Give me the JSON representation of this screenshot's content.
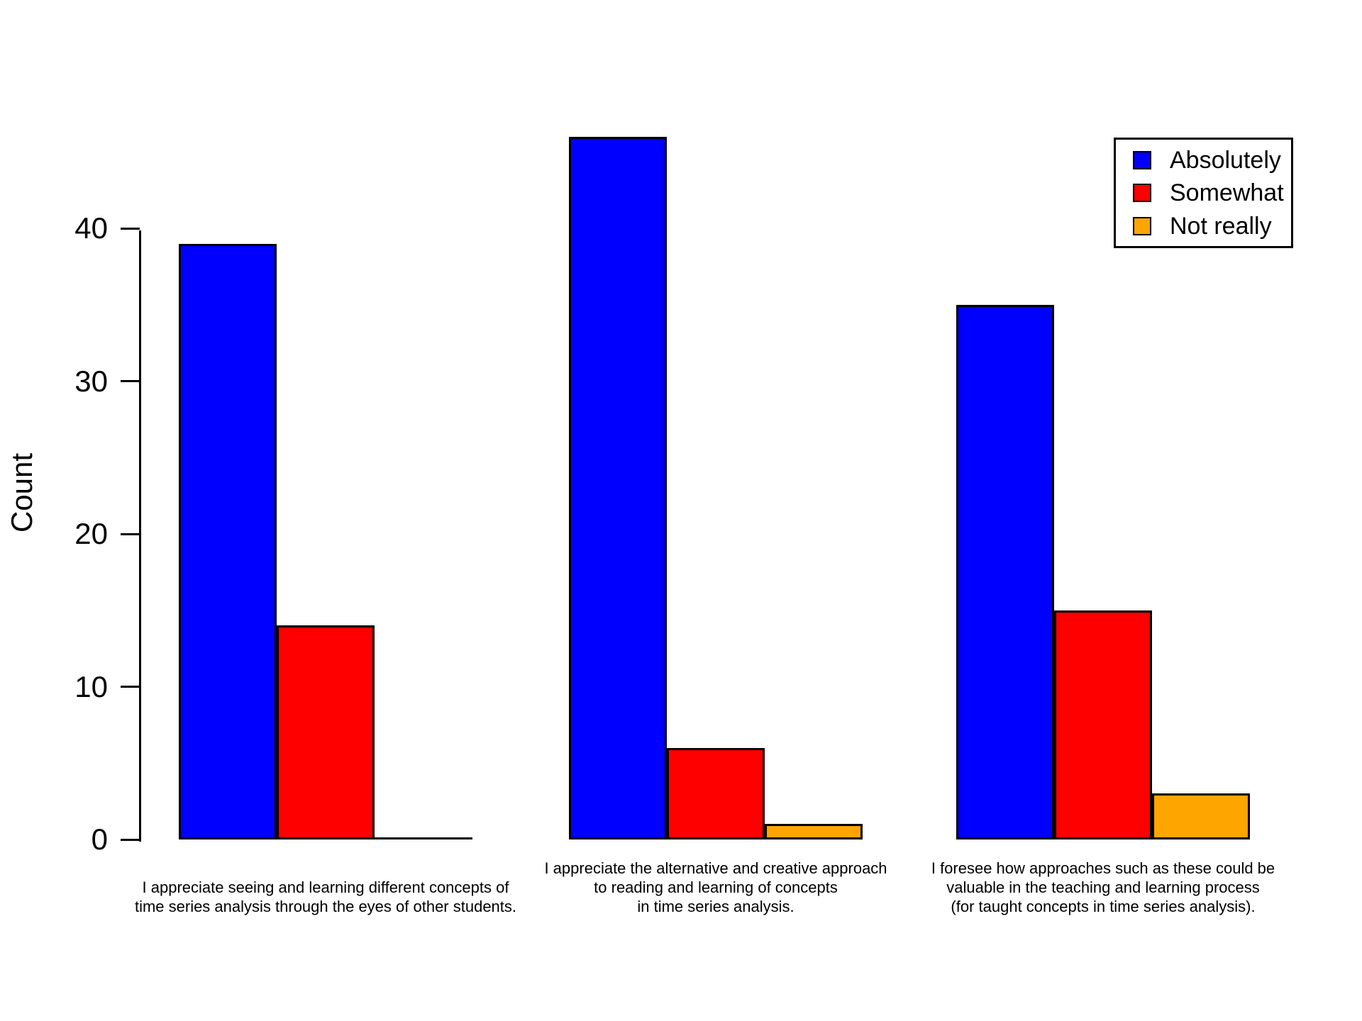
{
  "chart_data": {
    "type": "bar",
    "title": "",
    "xlabel": "",
    "ylabel": "Count",
    "ylim": [
      0,
      46
    ],
    "yticks": [
      0,
      10,
      20,
      30,
      40
    ],
    "grid": false,
    "bar_outline_color": "#000000",
    "categories": [
      "I appreciate seeing and learning different concepts of\ntime series analysis through the eyes of other students.",
      "I appreciate the alternative and creative approach\nto reading and learning of concepts\nin time series analysis.",
      "I foresee how approaches such as these could be\nvaluable in the teaching and learning process\n(for taught concepts in time series analysis)."
    ],
    "series": [
      {
        "name": "Absolutely",
        "color": "#0000FF",
        "values": [
          39,
          46,
          35
        ]
      },
      {
        "name": "Somewhat",
        "color": "#FF0000",
        "values": [
          14,
          6,
          15
        ]
      },
      {
        "name": "Not really",
        "color": "#FFA500",
        "values": [
          0,
          1,
          3
        ]
      }
    ],
    "legend": {
      "position": "top-right",
      "entries": [
        {
          "label": "Absolutely",
          "color": "#0000FF"
        },
        {
          "label": "Somewhat",
          "color": "#FF0000"
        },
        {
          "label": "Not really",
          "color": "#FFA500"
        }
      ]
    }
  }
}
